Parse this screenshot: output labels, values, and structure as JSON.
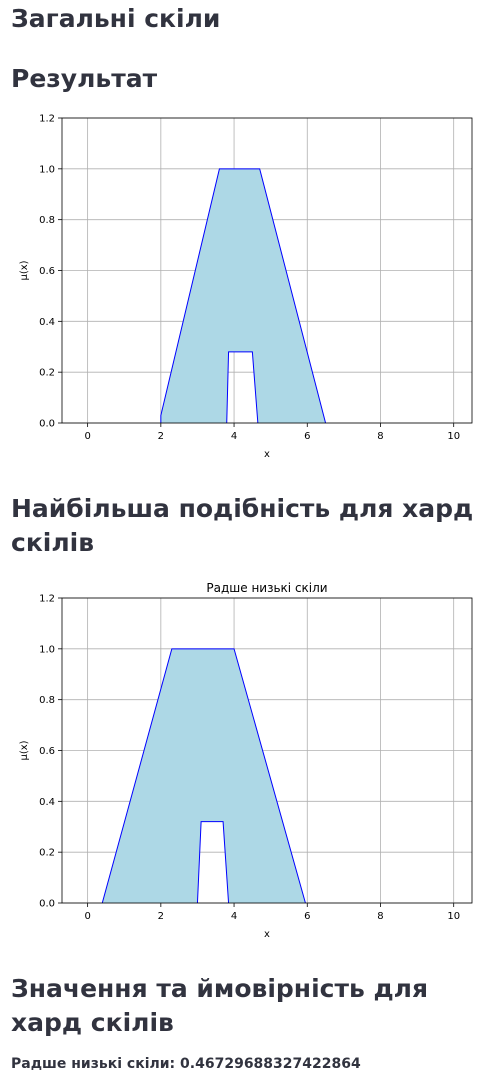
{
  "sections": {
    "general_title": "Загальні скіли",
    "result_title": "Результат",
    "similarity_title": "Найбільша подібність для хард скілів",
    "value_title": "Значення та ймовірність для хард скілів"
  },
  "result": {
    "label": "Радше низькі скіли:",
    "value": "0.46729688327422864"
  },
  "chart_data": [
    {
      "type": "area",
      "title": "",
      "xlabel": "x",
      "ylabel": "μ(x)",
      "xlim": [
        -0.7,
        10.5
      ],
      "ylim": [
        0,
        1.2
      ],
      "xticks": [
        "0",
        "2",
        "4",
        "6",
        "8",
        "10"
      ],
      "yticks": [
        "0.0",
        "0.2",
        "0.4",
        "0.6",
        "0.8",
        "1.0",
        "1.2"
      ],
      "grid": true,
      "fill_color": "#add8e6",
      "line_color": "#0000ff",
      "outer_polygon": [
        [
          2.0,
          0.0
        ],
        [
          2.0,
          0.03
        ],
        [
          3.6,
          1.0
        ],
        [
          4.7,
          1.0
        ],
        [
          6.5,
          0.0
        ]
      ],
      "inner_notch": [
        [
          3.8,
          0.0
        ],
        [
          3.85,
          0.28
        ],
        [
          4.5,
          0.28
        ],
        [
          4.65,
          0.0
        ]
      ]
    },
    {
      "type": "area",
      "title": "Радше низькі скіли",
      "xlabel": "x",
      "ylabel": "μ(x)",
      "xlim": [
        -0.7,
        10.5
      ],
      "ylim": [
        0,
        1.2
      ],
      "xticks": [
        "0",
        "2",
        "4",
        "6",
        "8",
        "10"
      ],
      "yticks": [
        "0.0",
        "0.2",
        "0.4",
        "0.6",
        "0.8",
        "1.0",
        "1.2"
      ],
      "grid": true,
      "fill_color": "#add8e6",
      "line_color": "#0000ff",
      "outer_polygon": [
        [
          0.4,
          0.0
        ],
        [
          2.3,
          1.0
        ],
        [
          4.0,
          1.0
        ],
        [
          5.95,
          0.0
        ]
      ],
      "inner_notch": [
        [
          3.0,
          0.0
        ],
        [
          3.1,
          0.32
        ],
        [
          3.7,
          0.32
        ],
        [
          3.85,
          0.0
        ]
      ]
    }
  ]
}
